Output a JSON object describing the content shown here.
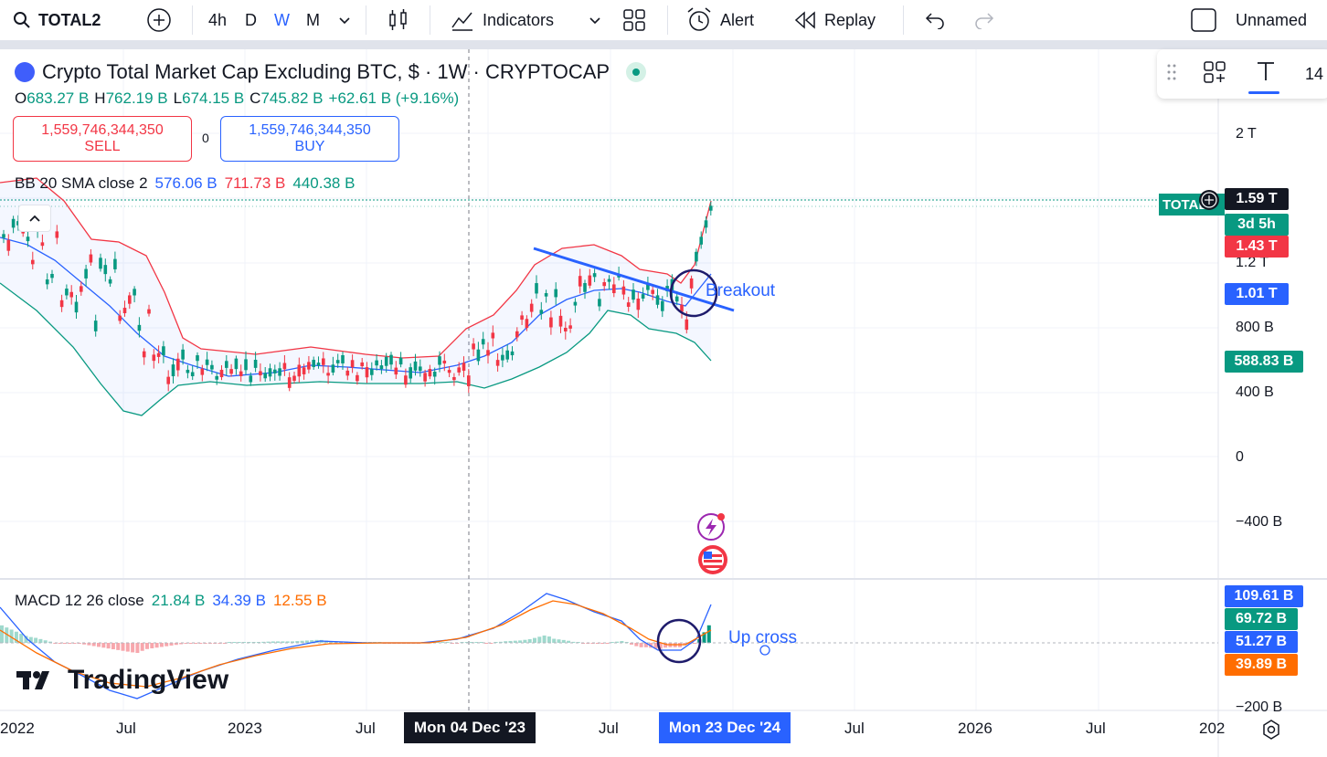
{
  "toolbar": {
    "symbol": "TOTAL2",
    "intervals": [
      "4h",
      "D",
      "W",
      "M"
    ],
    "active_interval": "W",
    "indicators_label": "Indicators",
    "alert_label": "Alert",
    "replay_label": "Replay",
    "layout_name": "Unnamed"
  },
  "legend": {
    "title": "Crypto Total Market Cap Excluding BTC, $ · 1W · CRYPTOCAP",
    "open_label": "O",
    "open": "683.27 B",
    "high_label": "H",
    "high": "762.19 B",
    "low_label": "L",
    "low": "674.15 B",
    "close_label": "C",
    "close": "745.82 B",
    "change": "+62.61 B (+9.16%)"
  },
  "trade": {
    "sell_price": "1,559,746,344,350",
    "sell_label": "SELL",
    "spread": "0",
    "buy_price": "1,559,746,344,350",
    "buy_label": "BUY"
  },
  "bb": {
    "label": "BB 20 SMA close 2",
    "basis": "576.06 B",
    "upper": "711.73 B",
    "lower": "440.38 B"
  },
  "macd": {
    "label": "MACD 12 26 close",
    "hist": "21.84 B",
    "macd": "34.39 B",
    "signal": "12.55 B"
  },
  "price_axis": {
    "ticks": [
      "2 T",
      "1.2 T",
      "800 B",
      "400 B",
      "0",
      "−400 B"
    ],
    "labels": {
      "last": "1.59 T",
      "countdown": "3d 5h",
      "upper": "1.43 T",
      "basis": "1.01 T",
      "lower": "588.83 B",
      "ticker_tag": "TOTAL"
    }
  },
  "macd_axis": {
    "ticks": [
      "−200 B"
    ],
    "labels": {
      "macd": "109.61 B",
      "hist": "69.72 B",
      "value3": "51.27 B",
      "signal": "39.89 B"
    }
  },
  "time_axis": {
    "ticks": [
      "2022",
      "Jul",
      "2023",
      "Jul",
      "Jul",
      "Jul",
      "2026",
      "Jul",
      "202"
    ],
    "crosshair_label": "Mon 04 Dec '23",
    "current_label": "Mon 23 Dec '24"
  },
  "annotations": {
    "breakout": "Breakout",
    "up_cross": "Up cross"
  },
  "watermark": "TradingView",
  "floating_toolbar": {
    "font_size": "14"
  },
  "colors": {
    "up": "#089981",
    "down": "#f23645",
    "basis": "#2962ff",
    "signal": "#ff6d00",
    "accent": "#2962ff"
  }
}
